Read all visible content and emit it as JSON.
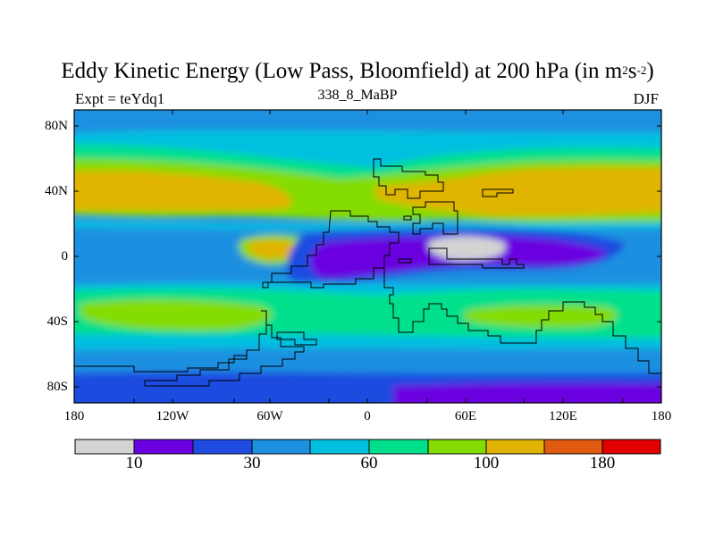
{
  "title": {
    "main": "Eddy Kinetic Energy (Low Pass, Bloomfield) at 200 hPa (in m",
    "sup1": "2",
    "mid": "s",
    "sup2": "-2",
    "end": ")"
  },
  "subtitle_left": "Expt = teYdq1",
  "subtitle_center": "338_8_MaBP",
  "subtitle_right": "DJF",
  "chart_data": {
    "type": "heatmap",
    "title": "Eddy Kinetic Energy (Low Pass, Bloomfield) at 200 hPa (in m^2 s^-2)",
    "variable": "Eddy Kinetic Energy",
    "units": "m2 s-2",
    "xlim": [
      -180,
      180
    ],
    "ylim": [
      -90,
      90
    ],
    "x_ticks": [
      "180",
      "120W",
      "60W",
      "0",
      "60E",
      "120E",
      "180"
    ],
    "y_ticks": [
      "80N",
      "40N",
      "0",
      "40S",
      "80S"
    ],
    "colorbar": {
      "colors": [
        "#d3d3d3",
        "#6a00e0",
        "#1f4be0",
        "#1e90e0",
        "#00c0e0",
        "#00e08c",
        "#84dc00",
        "#e0b400",
        "#e05a10",
        "#e00000"
      ],
      "labels": [
        "10",
        "30",
        "60",
        "100",
        "180"
      ]
    }
  }
}
